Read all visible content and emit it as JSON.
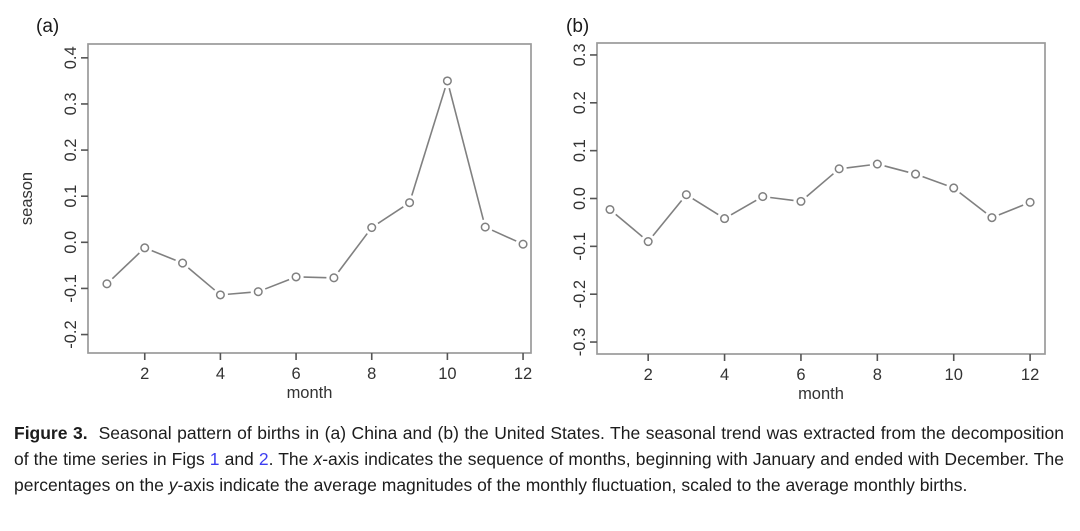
{
  "colors": {
    "background": "#ffffff",
    "frame": "#9a9a9a",
    "tick": "#555555",
    "tick_label": "#333333",
    "axis_label": "#333333",
    "panel_label": "#1a1a1a",
    "series": "#808080",
    "caption_text": "#1c1c1c",
    "link": "#3d3ef0"
  },
  "chart_data": [
    {
      "type": "line",
      "panel_label": "(a)",
      "title": "",
      "xlabel": "month",
      "ylabel": "season",
      "x": [
        1,
        2,
        3,
        4,
        5,
        6,
        7,
        8,
        9,
        10,
        11,
        12
      ],
      "y": [
        -0.09,
        -0.012,
        -0.045,
        -0.114,
        -0.107,
        -0.075,
        -0.077,
        0.032,
        0.086,
        0.35,
        0.033,
        -0.004
      ],
      "xticks": [
        2,
        4,
        6,
        8,
        10,
        12
      ],
      "yticks": [
        0.4,
        0.3,
        0.2,
        0.1,
        0,
        -0.1,
        -0.2
      ],
      "xlim": [
        0.5,
        12.21
      ],
      "ylim": [
        -0.24,
        0.43
      ],
      "marker": "open-circle",
      "grid": false,
      "legend": "none"
    },
    {
      "type": "line",
      "panel_label": "(b)",
      "title": "",
      "xlabel": "month",
      "ylabel": "",
      "x": [
        1,
        2,
        3,
        4,
        5,
        6,
        7,
        8,
        9,
        10,
        11,
        12
      ],
      "y": [
        -0.023,
        -0.09,
        0.008,
        -0.042,
        0.004,
        -0.006,
        0.062,
        0.072,
        0.051,
        0.022,
        -0.04,
        -0.008
      ],
      "xticks": [
        2,
        4,
        6,
        8,
        10,
        12
      ],
      "yticks": [
        0.3,
        0.2,
        0.1,
        0,
        -0.1,
        -0.2,
        -0.3
      ],
      "xlim": [
        0.66,
        12.39
      ],
      "ylim": [
        -0.325,
        0.325
      ],
      "marker": "open-circle",
      "grid": false,
      "legend": "none"
    }
  ],
  "caption": {
    "segments": [
      {
        "text": "Figure 3.",
        "style": "bold"
      },
      {
        "text": "  Seasonal pattern of births in (a) China and (b) the United States. The seasonal trend was extracted from the decomposition of the time series in Figs ",
        "style": "normal"
      },
      {
        "text": "1",
        "style": "link"
      },
      {
        "text": " and ",
        "style": "normal"
      },
      {
        "text": "2",
        "style": "link"
      },
      {
        "text": ". The ",
        "style": "normal"
      },
      {
        "text": "x",
        "style": "italic"
      },
      {
        "text": "-axis indicates the sequence of months, beginning with January and ended with December. The percentages on the ",
        "style": "normal"
      },
      {
        "text": "y",
        "style": "italic"
      },
      {
        "text": "-axis indicate the average magnitudes of the monthly fluctuation, scaled to the average monthly births.",
        "style": "normal"
      }
    ]
  }
}
